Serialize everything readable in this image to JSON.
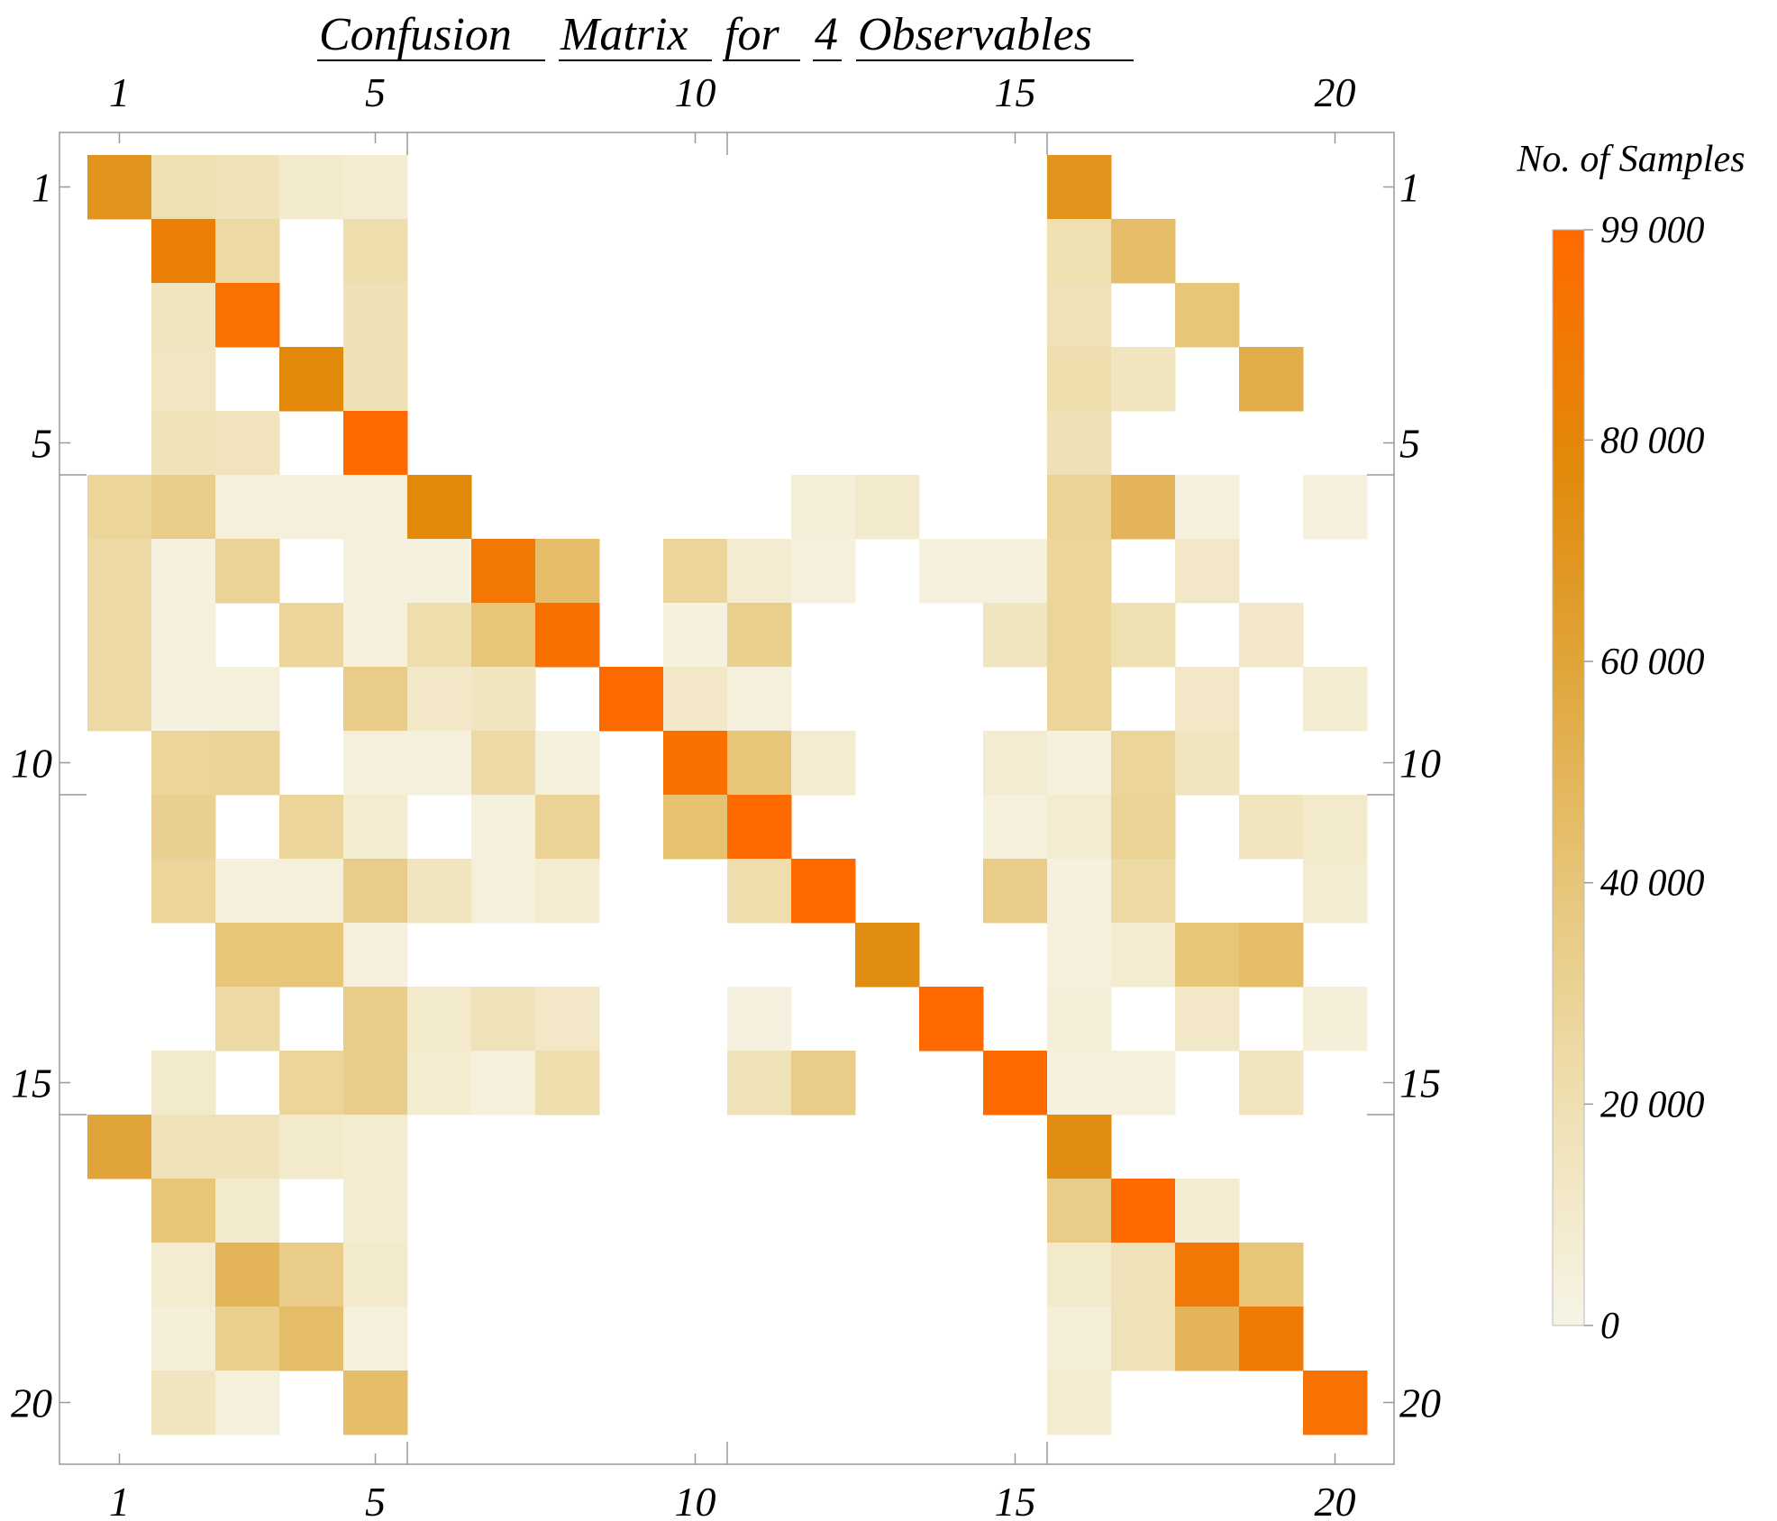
{
  "chart_data": {
    "type": "heatmap",
    "title_words": [
      "Confusion",
      "Matrix",
      "for",
      "4",
      "Observables"
    ],
    "rows": 20,
    "cols": 20,
    "x_ticks": [
      "1",
      "5",
      "10",
      "15",
      "20"
    ],
    "y_ticks": [
      "1",
      "5",
      "10",
      "15",
      "20"
    ],
    "tick_positions": [
      1,
      5,
      10,
      15,
      20
    ],
    "colorbar": {
      "title": "No. of Samples",
      "min": 0,
      "max": 99000,
      "ticks": [
        0,
        20000,
        40000,
        60000,
        80000,
        99000
      ],
      "tick_labels": [
        "0",
        "20 000",
        "40 000",
        "60 000",
        "80 000",
        "99 000"
      ]
    },
    "colors": {
      "low": "#f7f4e6",
      "mid1": "#efe0b3",
      "mid2": "#e7c67a",
      "mid3": "#e0a53a",
      "mid4": "#e18a0c",
      "high": "#ff6a00",
      "frame": "#999999"
    },
    "values": [
      [
        70000,
        20000,
        17000,
        10000,
        7000,
        0,
        0,
        0,
        0,
        0,
        0,
        0,
        0,
        0,
        0,
        70000,
        0,
        0,
        0,
        0
      ],
      [
        0,
        85000,
        25000,
        0,
        22000,
        0,
        0,
        0,
        0,
        0,
        0,
        0,
        0,
        0,
        0,
        20000,
        45000,
        0,
        0,
        0
      ],
      [
        0,
        15000,
        94000,
        0,
        19000,
        0,
        0,
        0,
        0,
        0,
        0,
        0,
        0,
        0,
        0,
        18000,
        0,
        40000,
        0,
        0
      ],
      [
        0,
        14000,
        0,
        78000,
        19000,
        0,
        0,
        0,
        0,
        0,
        0,
        0,
        0,
        0,
        0,
        22000,
        15000,
        0,
        55000,
        0
      ],
      [
        0,
        17000,
        16000,
        0,
        99000,
        0,
        0,
        0,
        0,
        0,
        0,
        0,
        0,
        0,
        0,
        19000,
        0,
        0,
        0,
        0
      ],
      [
        28000,
        35000,
        4000,
        4000,
        4000,
        78000,
        0,
        0,
        0,
        0,
        0,
        5000,
        10000,
        0,
        0,
        30000,
        50000,
        3000,
        0,
        3000
      ],
      [
        25000,
        3000,
        30000,
        0,
        3000,
        3000,
        90000,
        45000,
        0,
        28000,
        8000,
        3000,
        0,
        3000,
        3000,
        28000,
        0,
        12000,
        0,
        0
      ],
      [
        25000,
        3000,
        0,
        28000,
        3000,
        22000,
        40000,
        95000,
        0,
        3000,
        33000,
        0,
        0,
        0,
        15000,
        28000,
        20000,
        0,
        12000,
        0
      ],
      [
        25000,
        3000,
        4000,
        0,
        35000,
        12000,
        15000,
        0,
        99000,
        12000,
        4000,
        0,
        0,
        0,
        0,
        28000,
        0,
        12000,
        0,
        8000
      ],
      [
        0,
        28000,
        30000,
        0,
        4000,
        4000,
        25000,
        4000,
        0,
        95000,
        40000,
        8000,
        0,
        0,
        8000,
        3000,
        28000,
        15000,
        0,
        0
      ],
      [
        0,
        32000,
        0,
        28000,
        8000,
        0,
        4000,
        30000,
        0,
        42000,
        99000,
        0,
        0,
        0,
        4000,
        8000,
        30000,
        0,
        15000,
        10000
      ],
      [
        0,
        28000,
        4000,
        4000,
        35000,
        15000,
        4000,
        8000,
        0,
        0,
        22000,
        99000,
        0,
        0,
        35000,
        3000,
        25000,
        0,
        0,
        8000
      ],
      [
        0,
        0,
        40000,
        40000,
        3000,
        0,
        0,
        0,
        0,
        0,
        0,
        0,
        75000,
        0,
        0,
        3000,
        8000,
        40000,
        45000,
        0
      ],
      [
        0,
        0,
        25000,
        0,
        35000,
        10000,
        18000,
        12000,
        0,
        0,
        3000,
        0,
        0,
        99000,
        0,
        5000,
        0,
        12000,
        0,
        5000
      ],
      [
        0,
        10000,
        0,
        28000,
        35000,
        8000,
        4000,
        22000,
        0,
        0,
        18000,
        35000,
        0,
        0,
        99000,
        3000,
        3000,
        0,
        15000,
        0
      ],
      [
        60000,
        18000,
        18000,
        10000,
        8000,
        0,
        0,
        0,
        0,
        0,
        0,
        0,
        0,
        0,
        0,
        75000,
        0,
        0,
        0,
        0
      ],
      [
        0,
        40000,
        10000,
        0,
        8000,
        0,
        0,
        0,
        0,
        0,
        0,
        0,
        0,
        0,
        0,
        35000,
        99000,
        8000,
        0,
        0
      ],
      [
        0,
        8000,
        50000,
        35000,
        10000,
        0,
        0,
        0,
        0,
        0,
        0,
        0,
        0,
        0,
        0,
        10000,
        18000,
        90000,
        40000,
        0
      ],
      [
        0,
        5000,
        33000,
        45000,
        4000,
        0,
        0,
        0,
        0,
        0,
        0,
        0,
        0,
        0,
        0,
        5000,
        18000,
        50000,
        88000,
        0
      ],
      [
        0,
        15000,
        4000,
        0,
        45000,
        0,
        0,
        0,
        0,
        0,
        0,
        0,
        0,
        0,
        0,
        8000,
        0,
        0,
        0,
        94000
      ]
    ]
  }
}
